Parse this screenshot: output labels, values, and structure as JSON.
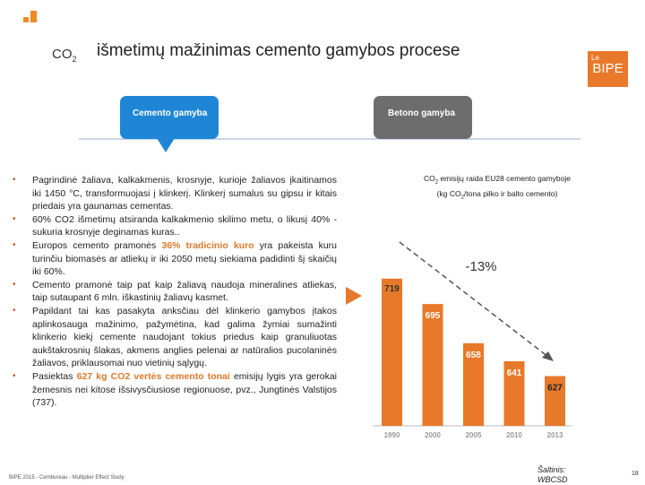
{
  "header": {
    "co2_base": "CO",
    "co2_sub": "2",
    "title": "išmetimų mažinimas cemento gamybos procese",
    "brand_small": "Le",
    "brand": "BIPE"
  },
  "tabs": [
    {
      "label": "Cemento gamyba",
      "active": true
    },
    {
      "label": "Betono gamyba",
      "active": false
    }
  ],
  "bullets": [
    {
      "pre": "Pagrindinė žaliava, kalkakmenis, krosnyje, kurioje žaliavos įkaitinamos iki 1450 °C, transformuojasi į klinkerį. Klinkerį sumalus su gipsu ir kitais priedais yra gaunamas cementas.",
      "hl": "",
      "post": ""
    },
    {
      "pre": "60% CO2 išmetimų atsiranda kalkakmenio skilimo metu, o likusį 40% - sukuria krosnyje deginamas kuras..",
      "hl": "",
      "post": ""
    },
    {
      "pre": "Europos cemento pramonės ",
      "hl": "36% tradicinio kuro",
      "post": " yra pakeista kuru turinčiu biomasės ar atliekų ir iki 2050 metų siekiama padidinti šį skaičių iki 60%."
    },
    {
      "pre": "Cemento pramonė taip pat kaip žaliavą naudoja mineralines atliekas, taip sutaupant 6 mln. iškastinių žaliavų kasmet.",
      "hl": "",
      "post": ""
    },
    {
      "pre": "Papildant tai kas pasakyta anksčiau dėl klinkerio gamybos įtakos aplinkosauga mažinimo, pažymėtina, kad galima žymiai sumažinti klinkerio kiekį cemente naudojant tokius priedus kaip granuliuotas aukštakrosnių šlakas, akmens anglies pelenai ar natūralios pucolaninės žaliavos, priklausomai nuo vietinių sąlygų.",
      "hl": "",
      "post": ""
    },
    {
      "pre": "Pasiektas ",
      "hl": "627 kg CO2 vertės cemento tonai",
      "post": " emisijų lygis yra gerokai žemesnis nei kitose išsivysčiusiose regionuose, pvz., Jungtinės Valstijos (737)."
    }
  ],
  "chart_title": {
    "line1_a": "CO",
    "line1_sub": "2",
    "line1_b": " emisijų raida EU28 cemento gamyboje",
    "line2_a": "(kg CO",
    "line2_sub": "2",
    "line2_b": "/tona pilko ir balto cemento)"
  },
  "chart_data": {
    "type": "bar",
    "categories": [
      "1990",
      "2000",
      "2005",
      "2010",
      "2013"
    ],
    "values": [
      719,
      695,
      658,
      641,
      627
    ],
    "annotation": "-13%",
    "bar_color": "#e8792a",
    "ylim": [
      580,
      740
    ]
  },
  "footer": "BIPE 2015 - Cembureau - Multiplier Effect Study",
  "source_line1": "Šaltinis:",
  "source_line2": "WBCSD",
  "page_number": "18",
  "colors": {
    "accent": "#e8792a",
    "active_tab": "#1f86d6",
    "inactive_tab": "#6d6d6d"
  }
}
